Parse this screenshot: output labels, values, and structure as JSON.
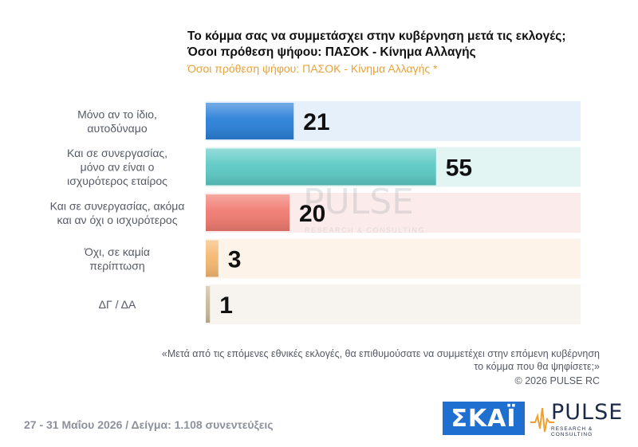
{
  "header": {
    "title_line1": "Το κόμμα σας να συμμετάσχει στην κυβέρνηση μετά τις εκλογές;",
    "title_line2": "Όσοι πρόθεση ψήφου: ΠΑΣΟΚ - Κίνημα Αλλαγής",
    "subtitle": "Όσοι πρόθεση ψήφου: ΠΑΣΟΚ - Κίνημα Αλλαγής *"
  },
  "chart_data": {
    "type": "bar",
    "orientation": "horizontal",
    "categories": [
      [
        "Μόνο αν το ίδιο,",
        "αυτοδύναμο"
      ],
      [
        "Και σε συνεργασίας,",
        "μόνο αν είναι ο",
        "ισχυρότερος εταίρος"
      ],
      [
        "Και σε συνεργασίας, ακόμα",
        "και αν όχι ο ισχυρότερος"
      ],
      [
        "Όχι, σε καμία",
        "περίπτωση"
      ],
      [
        "ΔΓ / ΔΑ"
      ]
    ],
    "values": [
      21,
      55,
      20,
      3,
      1
    ],
    "bar_colors": [
      "#2a7fd8",
      "#5cc9c4",
      "#f07a70",
      "#f5b870",
      "#c9b99a"
    ],
    "band_colors": [
      "#e6f0fb",
      "#e3f5f3",
      "#fbeceb",
      "#fdf3e9",
      "#f7f4ef"
    ],
    "xlim": [
      0,
      100
    ]
  },
  "watermark": {
    "name": "PULSE",
    "tagline": "RESEARCH & CONSULTING"
  },
  "note": {
    "line1": "«Μετά από τις επόμενες εθνικές εκλογές, θα επιθυμούσατε να συμμετέχει στην επόμενη κυβέρνηση",
    "line2": "το κόμμα που θα ψηφίσετε;»",
    "copyright": "©  2026  PULSE RC"
  },
  "footer": {
    "date_sample": "27 - 31  Μαΐου 2026  /  Δείγμα:  1.108 συνεντεύξεις"
  },
  "logos": {
    "skai": "ΣΚΑΪ",
    "pulse": "PULSE",
    "pulse_tagline": "RESEARCH & CONSULTING"
  }
}
